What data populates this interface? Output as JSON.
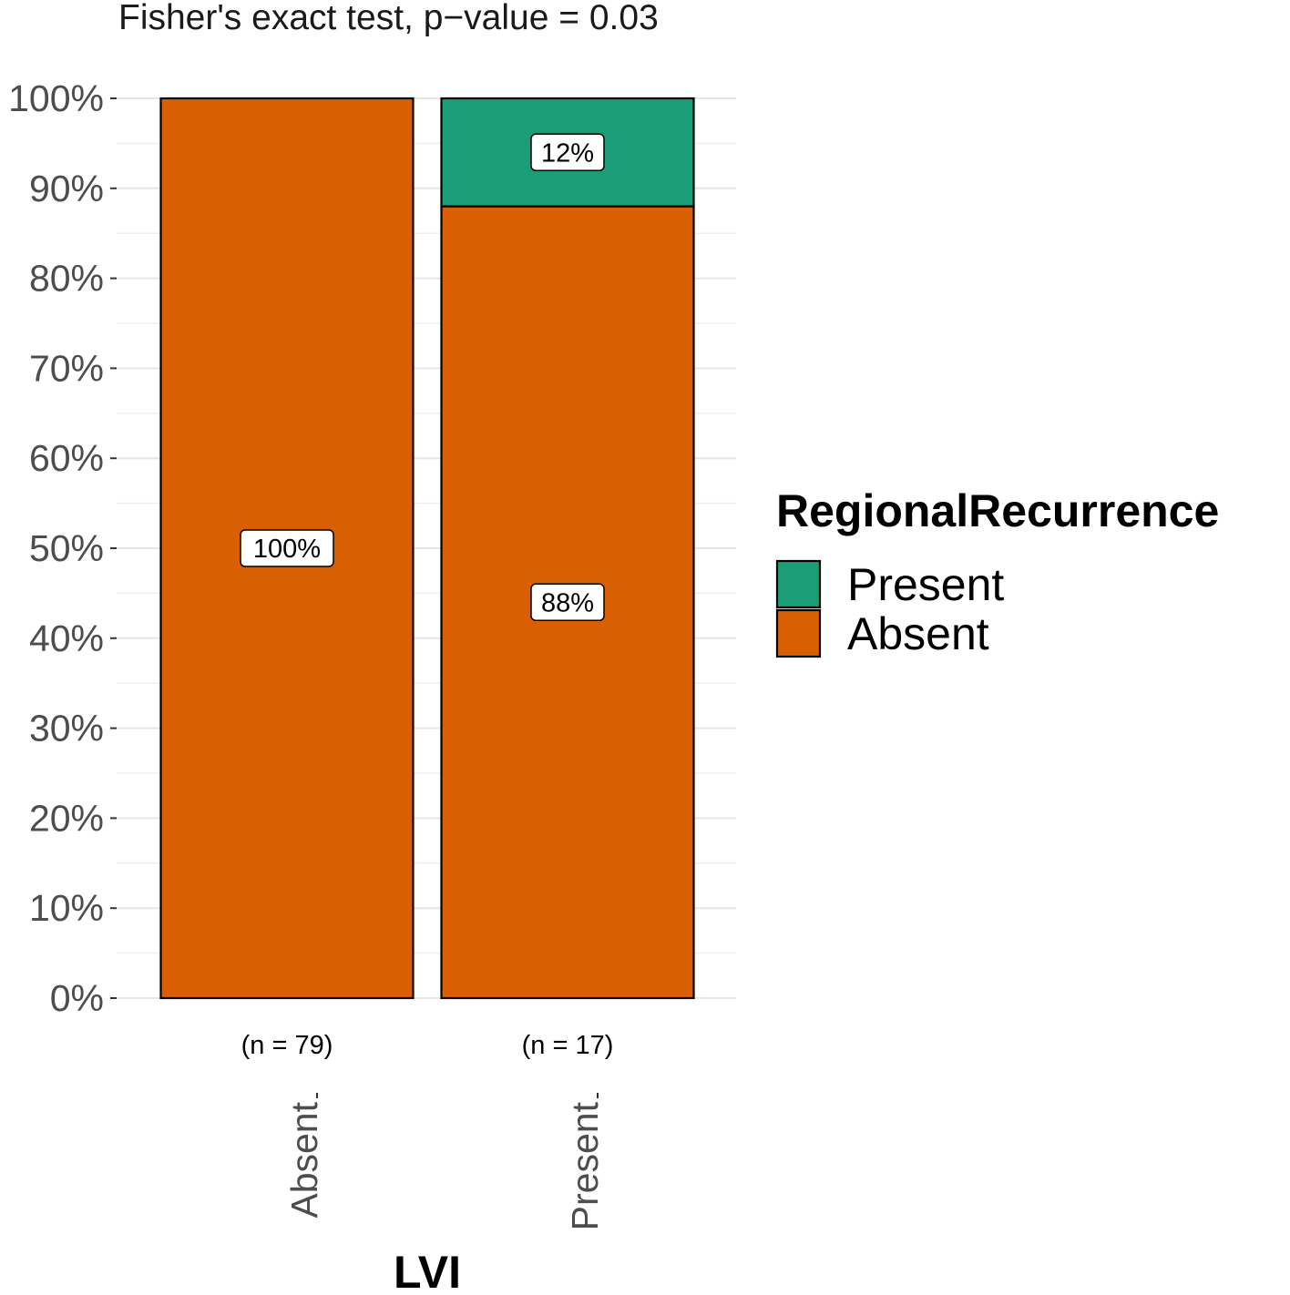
{
  "chart_data": {
    "type": "bar",
    "stacked": true,
    "title": "Fisher's exact test, p−value = 0.03",
    "xlabel": "LVI",
    "ylabel": "",
    "ylim": [
      0,
      100
    ],
    "y_ticks": [
      "0%",
      "10%",
      "20%",
      "30%",
      "40%",
      "50%",
      "60%",
      "70%",
      "80%",
      "90%",
      "100%"
    ],
    "categories": [
      "Absent",
      "Present"
    ],
    "category_counts": [
      "(n = 79)",
      "(n = 17)"
    ],
    "series": [
      {
        "name": "Absent",
        "values": [
          100,
          88
        ],
        "labels": [
          "100%",
          "88%"
        ],
        "color": "#D95F02"
      },
      {
        "name": "Present",
        "values": [
          0,
          12
        ],
        "labels": [
          "",
          "12%"
        ],
        "color": "#1B9E77"
      }
    ],
    "legend": {
      "title": "RegionalRecurrence",
      "position": "right",
      "items": [
        {
          "label": "Present",
          "color": "#1B9E77"
        },
        {
          "label": "Absent",
          "color": "#D95F02"
        }
      ]
    },
    "grid": true
  }
}
